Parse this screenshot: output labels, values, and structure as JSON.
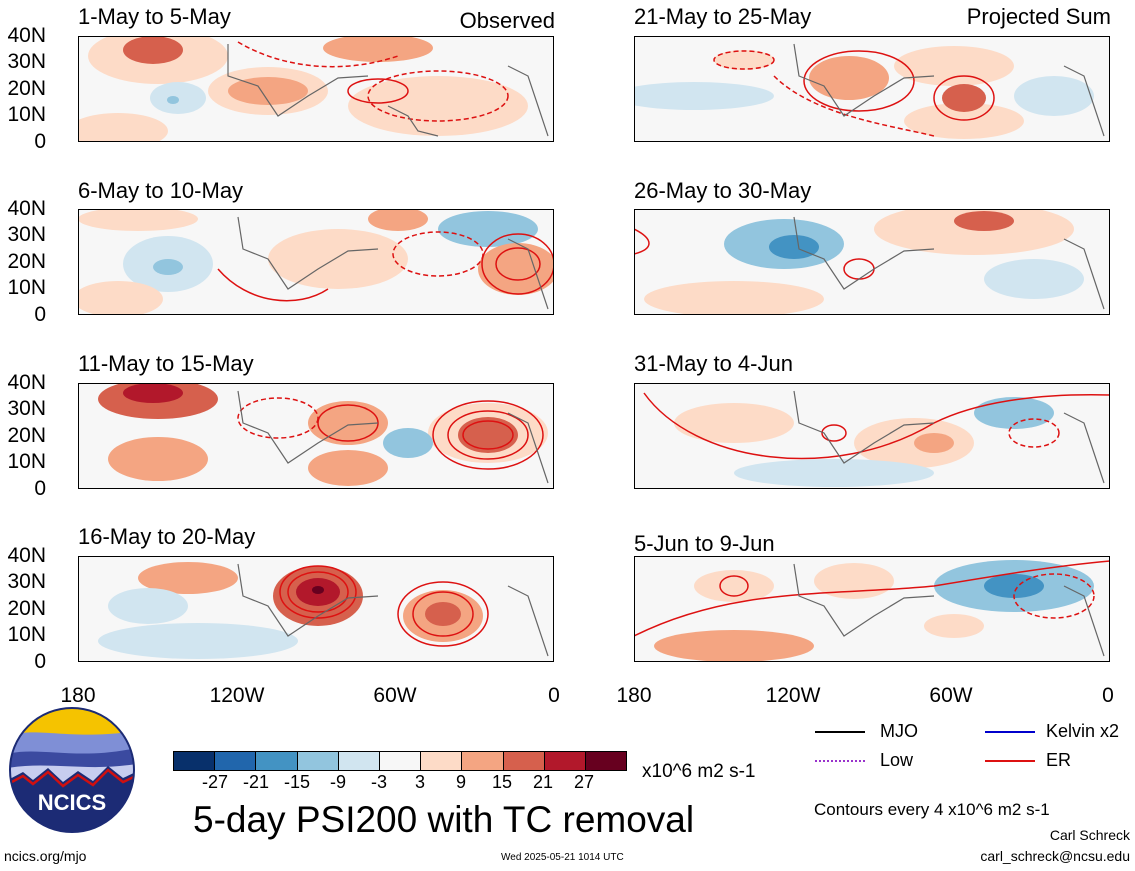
{
  "panels": [
    {
      "title": "1-May to 5-May",
      "tag": "Observed"
    },
    {
      "title": "21-May to 25-May",
      "tag": "Projected Sum"
    },
    {
      "title": "6-May to 10-May",
      "tag": ""
    },
    {
      "title": "26-May to 30-May",
      "tag": ""
    },
    {
      "title": "11-May to 15-May",
      "tag": ""
    },
    {
      "title": "31-May to 4-Jun",
      "tag": ""
    },
    {
      "title": "16-May to 20-May",
      "tag": ""
    },
    {
      "title": "5-Jun to 9-Jun",
      "tag": ""
    }
  ],
  "lat_ticks": [
    "40N",
    "30N",
    "20N",
    "10N",
    "0"
  ],
  "lon_ticks": [
    "180",
    "120W",
    "60W",
    "0"
  ],
  "colorbar": {
    "labels": [
      "-27",
      "-21",
      "-15",
      "-9",
      "-3",
      "3",
      "9",
      "15",
      "21",
      "27"
    ],
    "colors": [
      "#08306b",
      "#2166ac",
      "#4393c3",
      "#92c5de",
      "#d1e5f0",
      "#f7f7f7",
      "#fddbc7",
      "#f4a582",
      "#d6604d",
      "#b2182b",
      "#67001f"
    ],
    "units": "x10^6 m2 s-1"
  },
  "legend": [
    {
      "label": "MJO",
      "color": "#000000"
    },
    {
      "label": "Kelvin x2",
      "color": "#0000cc"
    },
    {
      "label": "Low",
      "color": "#9933cc"
    },
    {
      "label": "ER",
      "color": "#dd1111"
    }
  ],
  "logo_text": "NCICS",
  "main_title": "5-day PSI200 with TC removal",
  "contour_note": "Contours every 4 x10^6 m2 s-1",
  "author": "Carl Schreck",
  "email": "carl_schreck@ncsu.edu",
  "site": "ncics.org/mjo",
  "timestamp": "Wed 2025-05-21 1014 UTC"
}
